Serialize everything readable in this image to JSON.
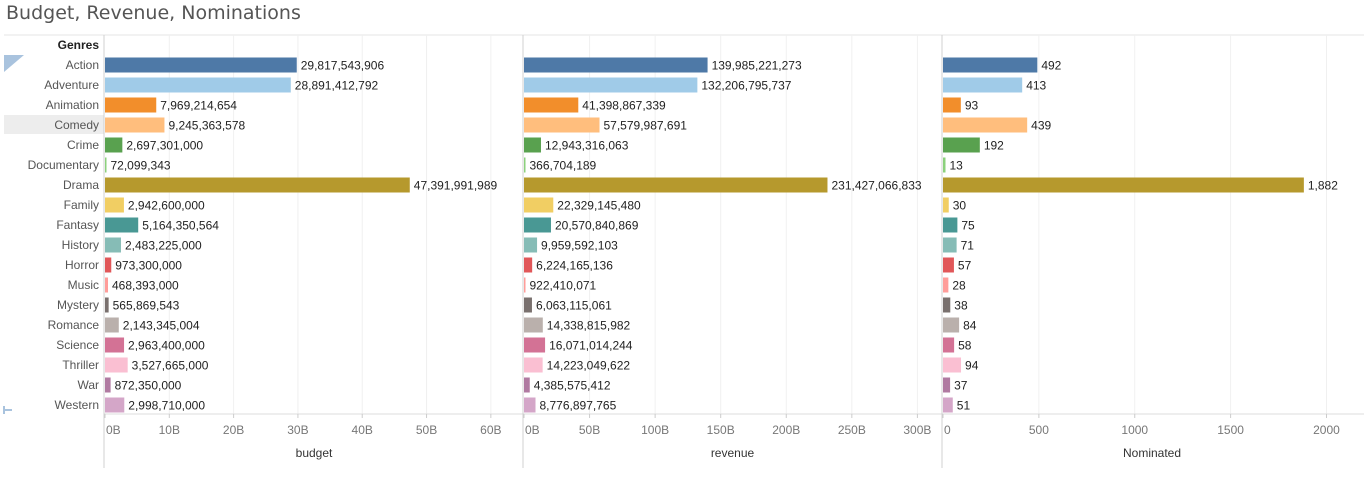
{
  "title": "Budget, Revenue, Nominations",
  "row_header": "Genres",
  "colors": {
    "Action": "#4e79a7",
    "Adventure": "#a0cbe8",
    "Animation": "#f28e2b",
    "Comedy": "#ffbe7d",
    "Crime": "#59a14f",
    "Documentary": "#8cd17d",
    "Drama": "#b6992d",
    "Family": "#f1ce63",
    "Fantasy": "#499894",
    "History": "#86bcb6",
    "Horror": "#e15759",
    "Music": "#ff9d9a",
    "Mystery": "#79706e",
    "Romance": "#bab0ac",
    "Science": "#d37295",
    "Thriller": "#fabfd2",
    "War": "#b07aa1",
    "Western": "#d4a6c8"
  },
  "chart_data": {
    "type": "bar",
    "orientation": "horizontal",
    "categories": [
      "Action",
      "Adventure",
      "Animation",
      "Comedy",
      "Crime",
      "Documentary",
      "Drama",
      "Family",
      "Fantasy",
      "History",
      "Horror",
      "Music",
      "Mystery",
      "Romance",
      "Science",
      "Thriller",
      "War",
      "Western"
    ],
    "panels": [
      {
        "measure": "budget",
        "xlabel": "budget",
        "xlim": [
          0,
          65000000000
        ],
        "ticks": [
          0,
          10000000000,
          20000000000,
          30000000000,
          40000000000,
          50000000000,
          60000000000
        ],
        "tick_labels": [
          "0B",
          "10B",
          "20B",
          "30B",
          "40B",
          "50B",
          "60B"
        ],
        "values": [
          29817543906,
          28891412792,
          7969214654,
          9245363578,
          2697301000,
          72099343,
          47391991989,
          2942600000,
          5164350564,
          2483225000,
          973300000,
          468393000,
          565869543,
          2143345004,
          2963400000,
          3527665000,
          872350000,
          2998710000
        ],
        "value_labels": [
          "29,817,543,906",
          "28,891,412,792",
          "7,969,214,654",
          "9,245,363,578",
          "2,697,301,000",
          "72,099,343",
          "47,391,991,989",
          "2,942,600,000",
          "5,164,350,564",
          "2,483,225,000",
          "973,300,000",
          "468,393,000",
          "565,869,543",
          "2,143,345,004",
          "2,963,400,000",
          "3,527,665,000",
          "872,350,000",
          "2,998,710,000"
        ]
      },
      {
        "measure": "revenue",
        "xlabel": "revenue",
        "xlim": [
          0,
          318000000000
        ],
        "ticks": [
          0,
          50000000000,
          100000000000,
          150000000000,
          200000000000,
          250000000000,
          300000000000
        ],
        "tick_labels": [
          "0B",
          "50B",
          "100B",
          "150B",
          "200B",
          "250B",
          "300B"
        ],
        "values": [
          139985221273,
          132206795737,
          41398867339,
          57579987691,
          12943316063,
          366704189,
          231427066833,
          22329145480,
          20570840869,
          9959592103,
          6224165136,
          922410071,
          6063115061,
          14338815982,
          16071014244,
          14223049622,
          4385575412,
          8776897765
        ],
        "value_labels": [
          "139,985,221,273",
          "132,206,795,737",
          "41,398,867,339",
          "57,579,987,691",
          "12,943,316,063",
          "366,704,189",
          "231,427,066,833",
          "22,329,145,480",
          "20,570,840,869",
          "9,959,592,103",
          "6,224,165,136",
          "922,410,071",
          "6,063,115,061",
          "14,338,815,982",
          "16,071,014,244",
          "14,223,049,622",
          "4,385,575,412",
          "8,776,897,765"
        ]
      },
      {
        "measure": "Nominated",
        "xlabel": "Nominated",
        "xlim": [
          0,
          2180
        ],
        "ticks": [
          0,
          500,
          1000,
          1500,
          2000
        ],
        "tick_labels": [
          "0",
          "500",
          "1000",
          "1500",
          "2000"
        ],
        "values": [
          492,
          413,
          93,
          439,
          192,
          13,
          1882,
          30,
          75,
          71,
          57,
          28,
          38,
          84,
          58,
          94,
          37,
          51
        ],
        "value_labels": [
          "492",
          "413",
          "93",
          "439",
          "192",
          "13",
          "1,882",
          "30",
          "75",
          "71",
          "57",
          "28",
          "38",
          "84",
          "58",
          "94",
          "37",
          "51"
        ]
      }
    ],
    "grid": true,
    "legend": "none"
  }
}
